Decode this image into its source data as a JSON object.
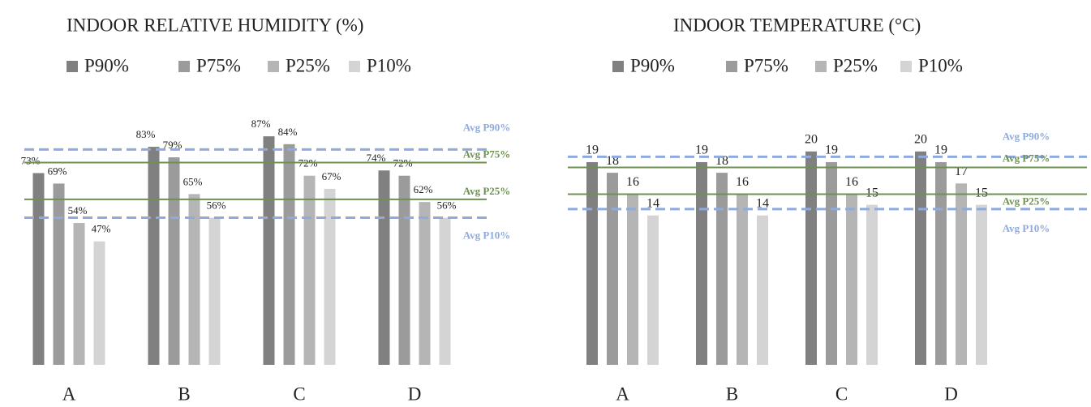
{
  "chart_data": [
    {
      "type": "bar",
      "title": "INDOOR RELATIVE HUMIDITY (%)",
      "categories": [
        "A",
        "B",
        "C",
        "D"
      ],
      "series": [
        {
          "name": "P90%",
          "color": "#808080",
          "values": [
            73,
            83,
            87,
            74
          ],
          "value_labels": [
            "73%",
            "83%",
            "87%",
            "74%"
          ]
        },
        {
          "name": "P75%",
          "color": "#9b9b9b",
          "values": [
            69,
            79,
            84,
            72
          ],
          "value_labels": [
            "69%",
            "79%",
            "84%",
            "72%"
          ]
        },
        {
          "name": "P25%",
          "color": "#b5b5b5",
          "values": [
            54,
            65,
            72,
            62
          ],
          "value_labels": [
            "54%",
            "65%",
            "72%",
            "62%"
          ]
        },
        {
          "name": "P10%",
          "color": "#d4d4d4",
          "values": [
            47,
            56,
            67,
            56
          ],
          "value_labels": [
            "47%",
            "56%",
            "67%",
            "56%"
          ]
        }
      ],
      "ylim": [
        0,
        100
      ],
      "reference_lines": [
        {
          "name": "Avg P90%",
          "value": 82,
          "style": "dashed",
          "color": "#8faadc"
        },
        {
          "name": "Avg P75%",
          "value": 77,
          "style": "solid",
          "color": "#6e9152"
        },
        {
          "name": "Avg P25%",
          "value": 63,
          "style": "solid",
          "color": "#6e9152"
        },
        {
          "name": "Avg P10%",
          "value": 56,
          "style": "dashed",
          "color": "#8faadc"
        }
      ]
    },
    {
      "type": "bar",
      "title": "INDOOR TEMPERATURE (°C)",
      "categories": [
        "A",
        "B",
        "C",
        "D"
      ],
      "series": [
        {
          "name": "P90%",
          "color": "#808080",
          "values": [
            19,
            19,
            20,
            20
          ]
        },
        {
          "name": "P75%",
          "color": "#9b9b9b",
          "values": [
            18,
            18,
            19,
            19
          ]
        },
        {
          "name": "P25%",
          "color": "#b5b5b5",
          "values": [
            16,
            16,
            16,
            17
          ]
        },
        {
          "name": "P10%",
          "color": "#d4d4d4",
          "values": [
            14,
            14,
            15,
            15
          ]
        }
      ],
      "ylim": [
        0,
        25
      ],
      "reference_lines": [
        {
          "name": "Avg P90%",
          "value": 19.5,
          "style": "dashed",
          "color": "#8faadc"
        },
        {
          "name": "Avg P75%",
          "value": 18.5,
          "style": "solid",
          "color": "#6e9152"
        },
        {
          "name": "Avg P25%",
          "value": 16,
          "style": "solid",
          "color": "#6e9152"
        },
        {
          "name": "Avg P10%",
          "value": 14.6,
          "style": "dashed",
          "color": "#8faadc"
        }
      ]
    }
  ]
}
